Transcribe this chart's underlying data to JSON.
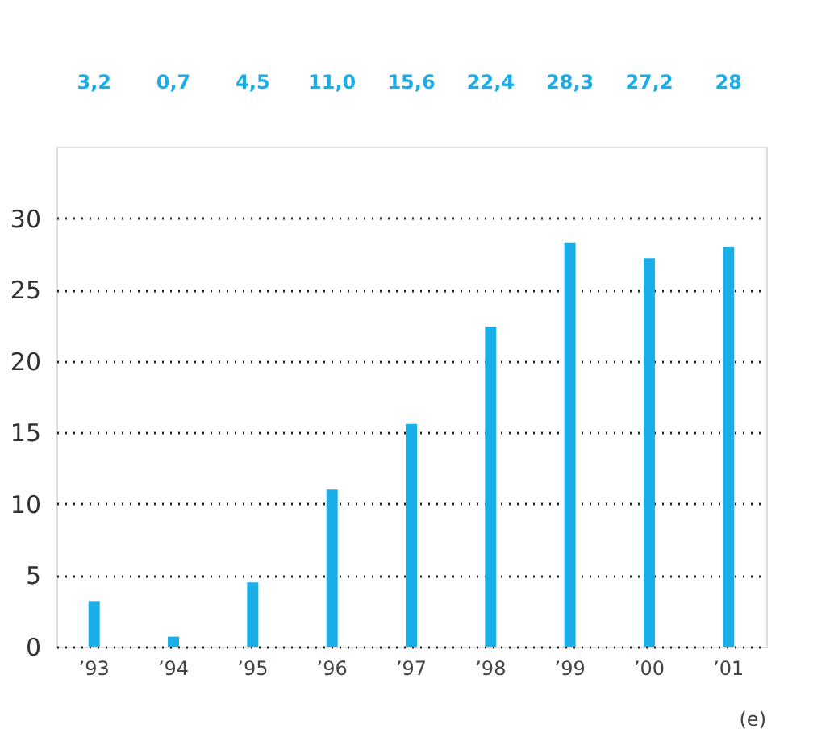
{
  "chart_data": {
    "type": "bar",
    "categories": [
      "’93",
      "’94",
      "’95",
      "’96",
      "’97",
      "’98",
      "’99",
      "’00",
      "’01"
    ],
    "values": [
      3.2,
      0.7,
      4.5,
      11.0,
      15.6,
      22.4,
      28.3,
      27.2,
      28
    ],
    "value_labels": [
      "3,2",
      "0,7",
      "4,5",
      "11,0",
      "15,6",
      "22,4",
      "28,3",
      "27,2",
      "28"
    ],
    "color": "#1aaee8",
    "ylim": [
      0,
      35
    ],
    "yticks": [
      0,
      5,
      10,
      15,
      20,
      25,
      30
    ],
    "grid": "y",
    "line_style": "dotted",
    "annotations": [
      "(e)"
    ]
  }
}
